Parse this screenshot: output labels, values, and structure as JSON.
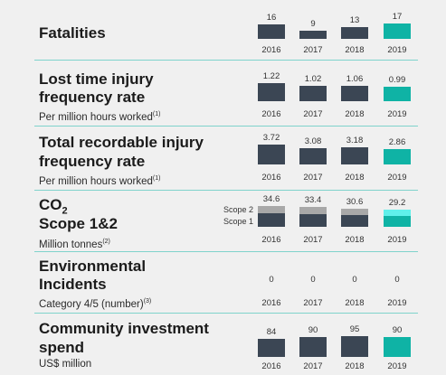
{
  "years": [
    "2016",
    "2017",
    "2018",
    "2019"
  ],
  "colors": {
    "bar": "#3b4654",
    "highlight": "#0fb3a5",
    "scope2": "#a8a8a8",
    "scope2_highlight": "#5ff0ea",
    "divider": "#7fd3cc"
  },
  "metrics": [
    {
      "title_lines": [
        "Fatalities"
      ],
      "subtitle": "",
      "values": [
        16,
        9,
        13,
        17
      ],
      "labels": [
        "16",
        "9",
        "13",
        "17"
      ]
    },
    {
      "title_lines": [
        "Lost time injury",
        "frequency rate"
      ],
      "subtitle": "Per million hours worked",
      "subtitle_note": "(1)",
      "values": [
        1.22,
        1.02,
        1.06,
        0.99
      ],
      "labels": [
        "1.22",
        "1.02",
        "1.06",
        "0.99"
      ]
    },
    {
      "title_lines": [
        "Total recordable injury",
        "frequency rate"
      ],
      "subtitle": "Per million hours worked",
      "subtitle_note": "(1)",
      "values": [
        3.72,
        3.08,
        3.18,
        2.86
      ],
      "labels": [
        "3.72",
        "3.08",
        "3.18",
        "2.86"
      ]
    },
    {
      "title_lines": [
        "CO",
        "Scope 1&2"
      ],
      "title_sub": "2",
      "subtitle": "Million tonnes",
      "subtitle_note": "(2)",
      "values": [
        34.6,
        33.4,
        30.6,
        29.2
      ],
      "labels": [
        "34.6",
        "33.4",
        "30.6",
        "29.2"
      ],
      "scope_labels": [
        "Scope 2",
        "Scope 1"
      ]
    },
    {
      "title_lines": [
        "Environmental",
        "Incidents"
      ],
      "subtitle": "Category 4/5 (number)",
      "subtitle_note": "(3)",
      "values": [
        0,
        0,
        0,
        0
      ],
      "labels": [
        "0",
        "0",
        "0",
        "0"
      ]
    },
    {
      "title_lines": [
        "Community investment",
        "spend"
      ],
      "subtitle": "US$ million",
      "values": [
        84,
        90,
        95,
        90
      ],
      "labels": [
        "84",
        "90",
        "95",
        "90"
      ]
    }
  ]
}
